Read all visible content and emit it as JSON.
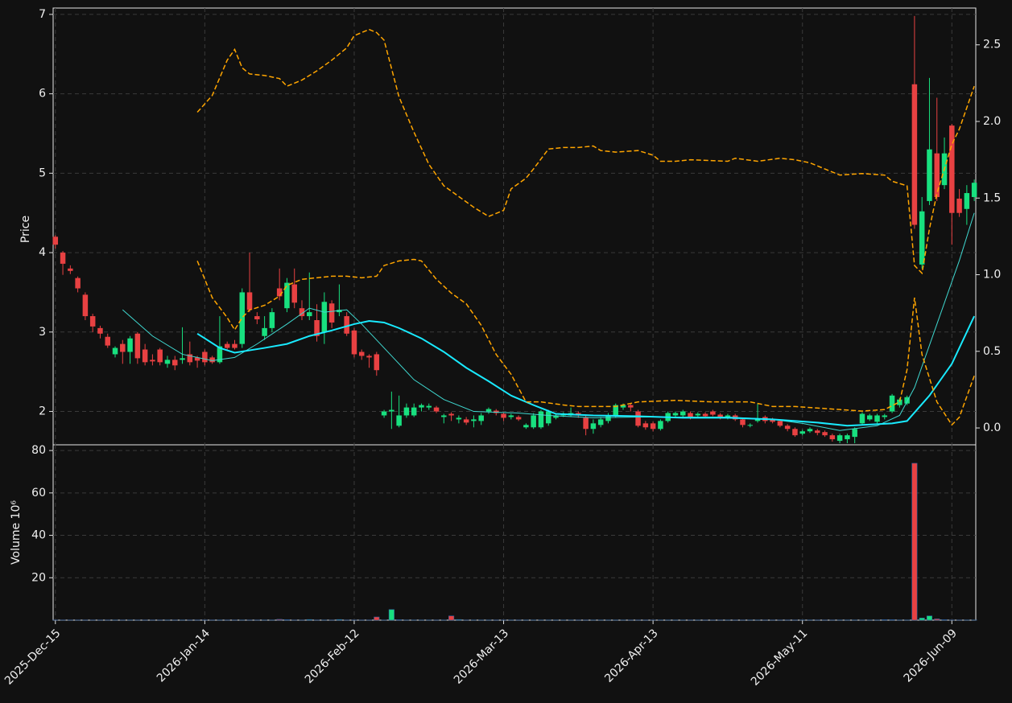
{
  "chart_data": {
    "type": "candlestick",
    "ylabel": "Price",
    "volume_ylabel": "Volume  10⁶",
    "xlim": [
      -0.3,
      123.2
    ],
    "xticks": [
      {
        "value": 0,
        "label": "2025-Dec-15"
      },
      {
        "value": 20,
        "label": "2026-Jan-14"
      },
      {
        "value": 40,
        "label": "2026-Feb-12"
      },
      {
        "value": 60,
        "label": "2026-Mar-13"
      },
      {
        "value": 80,
        "label": "2026-Apr-13"
      },
      {
        "value": 100,
        "label": "2026-May-11"
      },
      {
        "value": 120,
        "label": "2026-Jun-09"
      }
    ],
    "ylim": [
      1.58,
      7.08
    ],
    "yticks": [
      2,
      3,
      4,
      5,
      6,
      7
    ],
    "y2lim": [
      -0.11,
      2.74
    ],
    "y2ticks": [
      {
        "value": 0,
        "label": "0.0"
      },
      0.5,
      {
        "value": 1,
        "label": "1.0"
      },
      1.5,
      {
        "value": 2,
        "label": "2.0"
      },
      2.5
    ],
    "volume_ylim": [
      0,
      82.7
    ],
    "volume_yticks": [
      20,
      40,
      60,
      80
    ],
    "grid": true,
    "up_color": "#18e07f",
    "down_color": "#e84142",
    "open": [
      4.2,
      4.0,
      3.8,
      3.68,
      3.47,
      3.2,
      3.05,
      2.94,
      2.72,
      2.85,
      2.75,
      2.98,
      2.78,
      2.65,
      2.78,
      2.6,
      2.65,
      2.65,
      2.72,
      2.68,
      2.75,
      2.68,
      2.62,
      2.85,
      2.85,
      2.85,
      3.5,
      3.2,
      2.95,
      3.05,
      3.55,
      3.3,
      3.6,
      3.3,
      3.2,
      3.15,
      3.0,
      3.36,
      3.25,
      3.2,
      3.02,
      2.75,
      2.7,
      2.72,
      1.95,
      2.0,
      1.82,
      1.95,
      1.95,
      2.05,
      2.05,
      2.05,
      1.93,
      1.97,
      1.9,
      1.9,
      1.88,
      1.88,
      2.0,
      2.01,
      1.97,
      1.93,
      1.93,
      1.8,
      1.8,
      1.8,
      1.85,
      1.92,
      1.95,
      1.95,
      1.98,
      1.92,
      1.78,
      1.83,
      1.88,
      1.95,
      2.05,
      2.08,
      2.0,
      1.85,
      1.85,
      1.78,
      1.88,
      1.95,
      1.95,
      1.98,
      1.95,
      1.97,
      2.0,
      1.96,
      1.92,
      1.95,
      1.9,
      1.82,
      1.88,
      1.93,
      1.9,
      1.88,
      1.82,
      1.78,
      1.72,
      1.75,
      1.76,
      1.74,
      1.7,
      1.63,
      1.65,
      1.68,
      1.85,
      1.9,
      1.87,
      1.93,
      2.0,
      2.08,
      2.1,
      6.12,
      3.85,
      4.65,
      5.25,
      4.85,
      5.6,
      4.68,
      4.55,
      4.7
    ],
    "high": [
      4.22,
      4.02,
      3.84,
      3.7,
      3.5,
      3.23,
      3.08,
      2.98,
      2.82,
      2.9,
      2.95,
      3.0,
      2.85,
      2.72,
      2.8,
      2.7,
      2.7,
      3.06,
      2.88,
      2.7,
      2.78,
      2.7,
      3.2,
      2.88,
      2.9,
      3.55,
      4.0,
      3.25,
      3.2,
      3.3,
      3.8,
      3.68,
      3.8,
      3.4,
      3.75,
      3.35,
      3.5,
      3.4,
      3.6,
      3.25,
      3.05,
      2.78,
      2.72,
      2.75,
      2.02,
      2.25,
      2.2,
      2.1,
      2.1,
      2.1,
      2.1,
      2.07,
      1.97,
      1.99,
      1.95,
      1.93,
      1.95,
      1.98,
      2.05,
      2.03,
      1.99,
      1.97,
      1.95,
      1.85,
      1.98,
      2.02,
      2.02,
      1.97,
      1.99,
      2.05,
      2.0,
      1.95,
      1.9,
      1.93,
      1.98,
      2.1,
      2.1,
      2.1,
      2.02,
      1.88,
      1.87,
      1.9,
      2.0,
      2.0,
      2.02,
      2.0,
      1.99,
      1.99,
      2.02,
      1.98,
      1.97,
      1.97,
      1.92,
      1.85,
      2.1,
      1.95,
      1.92,
      1.9,
      1.84,
      1.8,
      1.77,
      1.8,
      1.78,
      1.76,
      1.72,
      1.72,
      1.72,
      1.8,
      1.99,
      1.97,
      1.97,
      1.97,
      2.22,
      2.17,
      2.2,
      6.98,
      4.7,
      6.2,
      5.95,
      5.45,
      5.62,
      4.8,
      4.85,
      4.92
    ],
    "low": [
      4.05,
      3.72,
      3.73,
      3.5,
      3.15,
      3.0,
      2.92,
      2.8,
      2.68,
      2.6,
      2.6,
      2.6,
      2.58,
      2.58,
      2.58,
      2.55,
      2.52,
      2.6,
      2.58,
      2.55,
      2.58,
      2.6,
      2.6,
      2.78,
      2.78,
      2.8,
      3.25,
      3.1,
      2.9,
      3.0,
      3.4,
      3.25,
      3.3,
      3.15,
      3.15,
      2.88,
      2.85,
      3.05,
      3.2,
      2.95,
      2.68,
      2.65,
      2.55,
      2.45,
      1.92,
      1.78,
      1.8,
      1.92,
      1.93,
      2.0,
      2.02,
      1.98,
      1.85,
      1.88,
      1.85,
      1.83,
      1.8,
      1.83,
      1.97,
      1.95,
      1.88,
      1.9,
      1.88,
      1.78,
      1.78,
      1.78,
      1.82,
      1.9,
      1.93,
      1.93,
      1.92,
      1.7,
      1.72,
      1.8,
      1.85,
      1.92,
      2.02,
      2.0,
      1.8,
      1.77,
      1.75,
      1.76,
      1.86,
      1.93,
      1.93,
      1.9,
      1.93,
      1.92,
      1.94,
      1.9,
      1.9,
      1.88,
      1.8,
      1.8,
      1.86,
      1.85,
      1.85,
      1.8,
      1.75,
      1.68,
      1.7,
      1.73,
      1.7,
      1.68,
      1.62,
      1.6,
      1.6,
      1.6,
      1.83,
      1.88,
      1.85,
      1.9,
      1.98,
      2.05,
      2.08,
      4.3,
      3.8,
      4.6,
      4.65,
      4.8,
      4.1,
      4.45,
      4.35,
      4.65
    ],
    "close": [
      4.1,
      3.86,
      3.77,
      3.55,
      3.2,
      3.07,
      2.98,
      2.83,
      2.8,
      2.75,
      2.92,
      2.67,
      2.62,
      2.63,
      2.62,
      2.65,
      2.58,
      2.67,
      2.62,
      2.64,
      2.62,
      2.62,
      2.82,
      2.8,
      2.8,
      3.5,
      3.28,
      3.16,
      3.05,
      3.25,
      3.45,
      3.62,
      3.37,
      3.2,
      3.25,
      2.95,
      3.38,
      3.12,
      3.28,
      2.98,
      2.72,
      2.7,
      2.68,
      2.52,
      2.0,
      2.02,
      1.95,
      2.05,
      2.05,
      2.08,
      2.07,
      2.0,
      1.95,
      1.95,
      1.92,
      1.86,
      1.9,
      1.95,
      2.03,
      1.98,
      1.92,
      1.95,
      1.9,
      1.83,
      1.95,
      2.0,
      2.0,
      1.95,
      1.97,
      1.98,
      1.95,
      1.78,
      1.85,
      1.9,
      1.95,
      2.08,
      2.08,
      2.05,
      1.82,
      1.8,
      1.78,
      1.88,
      1.98,
      1.98,
      2.0,
      1.92,
      1.97,
      1.94,
      1.96,
      1.92,
      1.95,
      1.9,
      1.83,
      1.83,
      1.9,
      1.88,
      1.87,
      1.82,
      1.78,
      1.7,
      1.75,
      1.78,
      1.73,
      1.7,
      1.65,
      1.7,
      1.7,
      1.78,
      1.97,
      1.95,
      1.95,
      1.95,
      2.2,
      2.15,
      2.18,
      4.35,
      4.52,
      5.3,
      4.7,
      5.25,
      4.5,
      4.5,
      4.75,
      4.88
    ],
    "volume": [
      0.05,
      0.05,
      0.05,
      0.05,
      0.05,
      0.05,
      0.05,
      0.05,
      0.05,
      0.05,
      0.05,
      0.05,
      0.05,
      0.05,
      0.05,
      0.05,
      0.05,
      0.05,
      0.05,
      0.05,
      0.05,
      0.05,
      0.05,
      0.05,
      0.05,
      0.05,
      0.05,
      0.05,
      0.05,
      0.05,
      0.4,
      0.2,
      0.05,
      0.05,
      0.3,
      0.05,
      0.05,
      0.05,
      0.3,
      0.05,
      0.05,
      0.05,
      0.05,
      1.5,
      0.05,
      5,
      0.2,
      0.05,
      0.05,
      0.05,
      0.05,
      0.05,
      0.05,
      2,
      0.3,
      0.05,
      0.05,
      0.05,
      0.05,
      0.05,
      0.05,
      0.05,
      0.05,
      0.05,
      0.05,
      0.05,
      0.05,
      0.05,
      0.05,
      0.05,
      0.05,
      0.05,
      0.05,
      0.05,
      0.05,
      0.05,
      0.05,
      0.05,
      0.05,
      0.05,
      0.05,
      0.05,
      0.05,
      0.05,
      0.05,
      0.05,
      0.05,
      0.05,
      0.05,
      0.05,
      0.05,
      0.05,
      0.05,
      0.05,
      0.05,
      0.05,
      0.05,
      0.05,
      0.05,
      0.05,
      0.05,
      0.05,
      0.05,
      0.05,
      0.05,
      0.05,
      0.05,
      0.05,
      0.05,
      0.05,
      0.05,
      0.2,
      0.2,
      0.05,
      0.05,
      74,
      1,
      2,
      0.6,
      0.2,
      0.05,
      0.05,
      0.05,
      0.05
    ],
    "series": [
      {
        "color": "#3fd8d0",
        "linewidth": 1,
        "x": [
          9,
          13,
          17,
          21,
          24,
          27,
          31,
          34,
          36,
          39,
          41,
          45,
          48,
          52,
          56,
          62,
          66,
          72,
          78,
          84,
          90,
          96,
          100,
          105,
          110,
          113,
          115,
          118,
          121,
          123
        ],
        "values": [
          3.28,
          2.95,
          2.72,
          2.64,
          2.68,
          2.85,
          3.1,
          3.3,
          3.25,
          3.28,
          3.1,
          2.7,
          2.4,
          2.15,
          2.0,
          1.98,
          1.95,
          1.92,
          1.93,
          1.93,
          1.93,
          1.9,
          1.85,
          1.76,
          1.82,
          1.95,
          2.3,
          3.1,
          3.9,
          4.5
        ]
      },
      {
        "color": "#19eaff",
        "linewidth": 2,
        "x": [
          19,
          22,
          24,
          28,
          31,
          34,
          37,
          40,
          42,
          44,
          46,
          49,
          52,
          55,
          58,
          61,
          64,
          67,
          72,
          78,
          84,
          90,
          96,
          102,
          106,
          112,
          114,
          117,
          120,
          123
        ],
        "values": [
          2.98,
          2.8,
          2.74,
          2.8,
          2.85,
          2.95,
          3.02,
          3.1,
          3.14,
          3.12,
          3.05,
          2.92,
          2.75,
          2.55,
          2.38,
          2.2,
          2.08,
          1.97,
          1.95,
          1.94,
          1.92,
          1.92,
          1.9,
          1.86,
          1.82,
          1.85,
          1.88,
          2.2,
          2.6,
          3.2
        ]
      },
      {
        "color": "#ffa500",
        "linewidth": 1.5,
        "dashed": true,
        "axis": "y2",
        "x": [
          19,
          21,
          23,
          24,
          25,
          26,
          28,
          30,
          31,
          33,
          35,
          37,
          39,
          40,
          42,
          43,
          44,
          46,
          48,
          50,
          52,
          54,
          56,
          58,
          60,
          61,
          63,
          64,
          66,
          68,
          70,
          72,
          73,
          75,
          78,
          80,
          81,
          83,
          85,
          90,
          91,
          94,
          97,
          99,
          101,
          103,
          105,
          108,
          111,
          112,
          114,
          115,
          116,
          117,
          118,
          120,
          121,
          123
        ],
        "values": [
          2.06,
          2.17,
          2.4,
          2.47,
          2.35,
          2.31,
          2.3,
          2.28,
          2.23,
          2.27,
          2.33,
          2.4,
          2.48,
          2.56,
          2.6,
          2.58,
          2.53,
          2.16,
          1.93,
          1.72,
          1.58,
          1.51,
          1.44,
          1.38,
          1.42,
          1.56,
          1.63,
          1.69,
          1.82,
          1.83,
          1.83,
          1.84,
          1.81,
          1.8,
          1.81,
          1.78,
          1.74,
          1.74,
          1.75,
          1.74,
          1.76,
          1.74,
          1.76,
          1.75,
          1.73,
          1.69,
          1.65,
          1.66,
          1.65,
          1.61,
          1.58,
          1.06,
          1.01,
          1.3,
          1.53,
          1.85,
          1.95,
          2.23
        ]
      },
      {
        "color": "#ffa500",
        "linewidth": 1.5,
        "dashed": true,
        "axis": "y2",
        "x": [
          19,
          21,
          23,
          24,
          25,
          26,
          28,
          30,
          31,
          33,
          35,
          37,
          39,
          41,
          43,
          44,
          46,
          48,
          49,
          51,
          53,
          55,
          57,
          59,
          61,
          63,
          65,
          68,
          70,
          75,
          78,
          83,
          88,
          93,
          96,
          99,
          105,
          108,
          111,
          113,
          114,
          115,
          116,
          118,
          120,
          121,
          123
        ],
        "values": [
          1.09,
          0.85,
          0.72,
          0.64,
          0.72,
          0.77,
          0.8,
          0.86,
          0.93,
          0.97,
          0.98,
          0.99,
          0.99,
          0.98,
          0.99,
          1.06,
          1.09,
          1.1,
          1.09,
          0.97,
          0.88,
          0.81,
          0.67,
          0.48,
          0.35,
          0.17,
          0.17,
          0.15,
          0.14,
          0.14,
          0.17,
          0.18,
          0.17,
          0.17,
          0.14,
          0.14,
          0.12,
          0.11,
          0.12,
          0.17,
          0.38,
          0.85,
          0.48,
          0.17,
          0.02,
          0.07,
          0.34
        ]
      }
    ]
  }
}
